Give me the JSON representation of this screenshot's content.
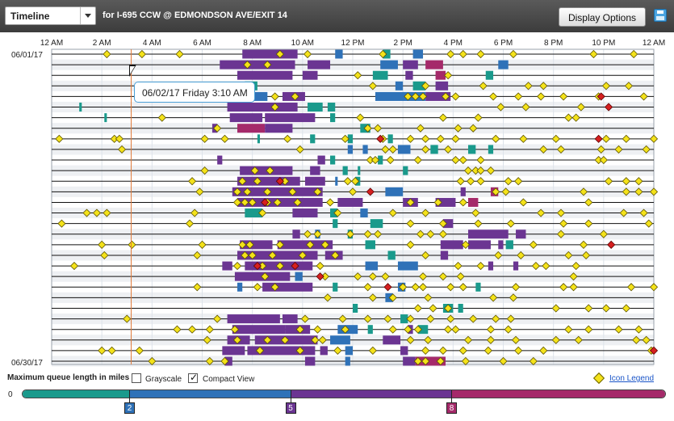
{
  "toolbar": {
    "view_select": "Timeline",
    "location": "for I-695 CCW @ EDMONDSON AVE/EXIT 14",
    "display_options": "Display Options",
    "save_icon": "save-icon"
  },
  "tooltip": "06/02/17 Friday 3:10 AM",
  "cursor_hour": 3.17,
  "chart_data": {
    "type": "timeline",
    "x_ticks": [
      "12 AM",
      "2 AM",
      "4 AM",
      "6 AM",
      "8 AM",
      "10 AM",
      "12 PM",
      "2 PM",
      "4 PM",
      "6 PM",
      "8 PM",
      "10 PM",
      "12 AM"
    ],
    "x_range_hours": [
      0,
      24
    ],
    "first_date": "06/01/17",
    "last_date": "06/30/17",
    "row_count": 30,
    "queue_colors": {
      "teal": "#1a9a8c",
      "blue": "#2f72b8",
      "purple": "#6b3592",
      "magenta": "#a52a6a"
    },
    "incident_color": "#f4e21a",
    "alert_color": "#d62020",
    "rows": [
      {
        "d": [
          2.2,
          3.6,
          5.1,
          9.1,
          10.2,
          13.2,
          15.9,
          16.4,
          17.1,
          18.4,
          21.6,
          23.2
        ],
        "q": [
          [
            7.6,
            9.8,
            "purple"
          ],
          [
            11.3,
            11.6,
            "blue"
          ],
          [
            13.2,
            13.5,
            "teal"
          ],
          [
            14.4,
            14.8,
            "blue"
          ]
        ]
      },
      {
        "d": [
          7.8,
          8.6
        ],
        "q": [
          [
            6.7,
            9.7,
            "purple"
          ],
          [
            10.2,
            11.1,
            "purple"
          ],
          [
            13.1,
            13.8,
            "blue"
          ],
          [
            14.0,
            14.6,
            "purple"
          ],
          [
            14.9,
            15.6,
            "magenta"
          ],
          [
            17.8,
            18.2,
            "blue"
          ]
        ]
      },
      {
        "d": [
          12.2,
          15.8
        ],
        "q": [
          [
            7.4,
            9.6,
            "purple"
          ],
          [
            10.0,
            10.6,
            "purple"
          ],
          [
            12.8,
            13.4,
            "teal"
          ],
          [
            14.1,
            14.4,
            "purple"
          ],
          [
            15.3,
            15.7,
            "magenta"
          ],
          [
            17.3,
            17.6,
            "teal"
          ]
        ]
      },
      {
        "d": [
          12.8,
          14.9,
          17.2,
          19.0,
          19.6,
          22.1,
          23.0
        ],
        "q": [
          [
            7.7,
            8.2,
            "teal"
          ],
          [
            13.7,
            14.0,
            "blue"
          ],
          [
            14.4,
            14.9,
            "teal"
          ],
          [
            15.3,
            15.8,
            "purple"
          ]
        ]
      },
      {
        "d": [
          8.9,
          9.7,
          14.2,
          14.5,
          14.8,
          15.7,
          16.1,
          17.6,
          18.6,
          19.5,
          20.4,
          21.8,
          23.6
        ],
        "q": [
          [
            7.7,
            8.6,
            "blue"
          ],
          [
            9.2,
            10.1,
            "purple"
          ],
          [
            12.9,
            14.9,
            "blue"
          ],
          [
            14.9,
            15.9,
            "purple"
          ]
        ],
        "r": [
          21.9
        ]
      },
      {
        "d": [
          8.9,
          17.9,
          18.9,
          21.1
        ],
        "q": [
          [
            1.1,
            1.2,
            "teal"
          ],
          [
            7.0,
            9.8,
            "purple"
          ],
          [
            10.2,
            10.8,
            "teal"
          ],
          [
            11.0,
            11.3,
            "teal"
          ]
        ],
        "r": [
          22.2
        ]
      },
      {
        "d": [
          4.4,
          12.3,
          15.6,
          17.0,
          20.6,
          20.9
        ],
        "q": [
          [
            2.1,
            2.2,
            "teal"
          ],
          [
            7.1,
            8.4,
            "purple"
          ],
          [
            8.5,
            10.5,
            "purple"
          ],
          [
            11.1,
            11.3,
            "teal"
          ]
        ]
      },
      {
        "d": [
          6.6,
          12.6,
          13.0,
          14.7,
          16.2,
          16.8
        ],
        "q": [
          [
            6.4,
            6.6,
            "purple"
          ],
          [
            7.4,
            8.5,
            "magenta"
          ],
          [
            8.5,
            9.6,
            "purple"
          ],
          [
            12.3,
            12.7,
            "teal"
          ]
        ]
      },
      {
        "d": [
          0.3,
          2.5,
          2.7,
          6.1,
          6.9,
          9.4,
          11.7,
          13.2,
          14.3,
          14.9,
          15.5,
          16.1,
          17.7,
          18.8,
          20.1,
          22.1,
          22.9,
          24.0
        ],
        "q": [
          [
            8.2,
            8.3,
            "teal"
          ],
          [
            10.3,
            10.5,
            "teal"
          ],
          [
            11.8,
            12.0,
            "teal"
          ],
          [
            13.4,
            13.6,
            "teal"
          ]
        ],
        "r": [
          13.1,
          21.8
        ]
      },
      {
        "d": [
          2.8,
          9.9,
          13.3,
          13.6,
          14.9,
          15.8,
          19.6,
          20.3,
          21.9,
          22.6,
          23.7
        ],
        "q": [
          [
            11.8,
            12.0,
            "blue"
          ],
          [
            12.4,
            12.6,
            "blue"
          ],
          [
            13.8,
            14.3,
            "blue"
          ],
          [
            15.1,
            15.4,
            "teal"
          ],
          [
            16.6,
            16.9,
            "teal"
          ],
          [
            17.4,
            17.6,
            "teal"
          ]
        ]
      },
      {
        "d": [
          12.7,
          12.9,
          13.5,
          14.6,
          16.1,
          16.4,
          17.1,
          21.8,
          22.0
        ],
        "q": [
          [
            6.6,
            6.8,
            "purple"
          ],
          [
            10.6,
            10.9,
            "purple"
          ],
          [
            11.1,
            11.3,
            "teal"
          ],
          [
            13.0,
            13.2,
            "teal"
          ]
        ]
      },
      {
        "d": [
          6.1,
          8.1,
          8.7,
          16.6,
          16.9,
          17.1,
          17.5
        ],
        "q": [
          [
            7.5,
            9.6,
            "purple"
          ],
          [
            10.3,
            10.7,
            "purple"
          ],
          [
            11.6,
            11.8,
            "teal"
          ],
          [
            12.2,
            12.3,
            "teal"
          ],
          [
            14.0,
            14.2,
            "teal"
          ]
        ]
      },
      {
        "d": [
          5.6,
          7.6,
          8.2,
          9.3,
          11.8,
          12.1,
          16.3,
          16.7,
          17.1,
          18.2,
          18.6,
          22.2,
          22.9,
          23.4
        ],
        "q": [
          [
            7.4,
            9.9,
            "purple"
          ],
          [
            10.1,
            10.9,
            "purple"
          ],
          [
            11.3,
            11.4,
            "blue"
          ],
          [
            12.1,
            12.3,
            "teal"
          ]
        ],
        "r": [
          9.1
        ]
      },
      {
        "d": [
          5.9,
          7.4,
          7.8,
          8.6,
          9.6,
          10.6,
          12.0,
          17.7,
          18.1,
          21.2,
          22.9,
          23.4,
          24.0
        ],
        "q": [
          [
            7.2,
            10.8,
            "purple"
          ],
          [
            13.3,
            14.0,
            "blue"
          ],
          [
            16.3,
            16.5,
            "purple"
          ],
          [
            17.5,
            17.8,
            "magenta"
          ]
        ],
        "r": [
          12.7
        ]
      },
      {
        "d": [
          7.4,
          7.7,
          8.0,
          8.6,
          9.0,
          9.8,
          11.1,
          14.3,
          15.4,
          16.4,
          18.8,
          21.4
        ],
        "q": [
          [
            7.4,
            10.8,
            "purple"
          ],
          [
            11.4,
            12.4,
            "purple"
          ],
          [
            14.0,
            14.6,
            "purple"
          ],
          [
            15.3,
            16.1,
            "purple"
          ],
          [
            16.6,
            17.0,
            "magenta"
          ]
        ],
        "r": [
          8.5
        ]
      },
      {
        "d": [
          1.4,
          1.8,
          2.2,
          5.7,
          8.4,
          11.4,
          13.6,
          14.9,
          16.9,
          19.5,
          20.3,
          22.8,
          23.6
        ],
        "q": [
          [
            7.7,
            8.4,
            "teal"
          ],
          [
            9.6,
            10.6,
            "purple"
          ],
          [
            11.1,
            11.4,
            "teal"
          ],
          [
            12.3,
            12.6,
            "blue"
          ]
        ]
      },
      {
        "d": [
          0.4,
          5.5,
          14.3,
          15.6,
          17.0,
          18.3,
          20.4,
          21.4,
          23.8
        ],
        "q": [
          [
            11.2,
            11.4,
            "teal"
          ],
          [
            12.7,
            13.2,
            "teal"
          ],
          [
            15.6,
            16.0,
            "purple"
          ]
        ]
      },
      {
        "d": [
          10.2,
          10.6,
          11.9,
          12.6,
          13.0,
          14.7,
          15.1,
          15.6,
          20.3,
          22.0
        ],
        "q": [
          [
            9.6,
            9.9,
            "purple"
          ],
          [
            10.5,
            10.7,
            "blue"
          ],
          [
            11.8,
            12.0,
            "teal"
          ],
          [
            16.6,
            18.2,
            "purple"
          ],
          [
            18.5,
            18.9,
            "purple"
          ]
        ]
      },
      {
        "d": [
          2.0,
          3.2,
          6.0,
          7.6,
          7.9,
          9.1,
          10.3,
          10.9,
          14.3,
          16.5,
          19.2,
          21.2
        ],
        "q": [
          [
            7.5,
            8.8,
            "purple"
          ],
          [
            9.0,
            11.2,
            "purple"
          ],
          [
            12.5,
            12.9,
            "teal"
          ],
          [
            15.5,
            16.4,
            "purple"
          ],
          [
            16.6,
            17.5,
            "purple"
          ],
          [
            17.8,
            18.0,
            "purple"
          ],
          [
            18.1,
            18.4,
            "teal"
          ]
        ],
        "r": [
          22.3
        ]
      },
      {
        "d": [
          2.1,
          5.8,
          7.7,
          8.0,
          8.8,
          10.0,
          11.3,
          14.9,
          17.8,
          18.7,
          20.6,
          21.3
        ],
        "q": [
          [
            7.4,
            10.6,
            "purple"
          ],
          [
            10.9,
            11.6,
            "purple"
          ],
          [
            13.4,
            13.7,
            "teal"
          ],
          [
            15.5,
            15.8,
            "purple"
          ]
        ]
      },
      {
        "d": [
          0.9,
          7.4,
          8.4,
          9.1,
          10.7,
          16.2,
          17.1,
          19.3,
          19.7,
          20.9
        ],
        "q": [
          [
            6.8,
            7.2,
            "purple"
          ],
          [
            7.7,
            10.4,
            "purple"
          ],
          [
            12.5,
            13.0,
            "blue"
          ],
          [
            13.8,
            14.6,
            "blue"
          ],
          [
            17.4,
            17.6,
            "purple"
          ],
          [
            18.4,
            18.6,
            "purple"
          ]
        ],
        "r": [
          8.2,
          9.7
        ]
      },
      {
        "d": [
          8.5,
          10.9,
          12.2,
          12.8,
          13.3,
          14.8,
          15.6,
          16.3,
          20.8
        ],
        "q": [
          [
            7.3,
            9.5,
            "purple"
          ],
          [
            9.7,
            10.0,
            "blue"
          ]
        ],
        "r": [
          10.7
        ]
      },
      {
        "d": [
          5.8,
          8.2,
          8.9,
          12.6,
          14.0,
          14.5,
          14.8,
          15.9,
          16.4,
          18.5,
          20.4,
          20.8,
          23.1,
          24.0
        ],
        "q": [
          [
            7.4,
            7.6,
            "blue"
          ],
          [
            8.4,
            10.4,
            "purple"
          ],
          [
            11.2,
            11.4,
            "teal"
          ],
          [
            13.8,
            14.1,
            "blue"
          ],
          [
            16.9,
            17.1,
            "teal"
          ]
        ],
        "r": [
          13.4
        ]
      },
      {
        "d": [
          11.0,
          12.8,
          13.6,
          15.0,
          17.6,
          18.4
        ],
        "q": [
          [
            13.3,
            13.6,
            "blue"
          ]
        ]
      },
      {
        "d": [
          14.6,
          15.2,
          15.8,
          20.1,
          21.4,
          22.1,
          22.9
        ],
        "q": [
          [
            12.0,
            12.2,
            "teal"
          ],
          [
            15.6,
            16.0,
            "teal"
          ],
          [
            16.2,
            16.4,
            "teal"
          ]
        ]
      },
      {
        "d": [
          3.0,
          6.6,
          10.1,
          11.6,
          12.6,
          13.4,
          14.3,
          15.1,
          15.9,
          16.8,
          17.7,
          18.3
        ],
        "q": [
          [
            7.0,
            9.1,
            "purple"
          ],
          [
            9.2,
            9.8,
            "purple"
          ],
          [
            13.9,
            14.2,
            "teal"
          ]
        ]
      },
      {
        "d": [
          5.0,
          5.6,
          6.3,
          7.3,
          9.9,
          10.6,
          11.7,
          13.6,
          14.2,
          14.6,
          15.8,
          16.1,
          17.5,
          18.2,
          20.6,
          21.4,
          22.6,
          23.4
        ],
        "q": [
          [
            7.2,
            9.3,
            "purple"
          ],
          [
            9.3,
            10.3,
            "purple"
          ],
          [
            11.4,
            12.2,
            "blue"
          ],
          [
            12.6,
            12.8,
            "teal"
          ],
          [
            14.2,
            14.4,
            "purple"
          ],
          [
            14.6,
            15.0,
            "teal"
          ]
        ]
      },
      {
        "d": [
          6.2,
          7.4,
          8.6,
          9.3,
          10.5,
          10.8,
          14.3,
          15.0,
          16.6,
          17.5,
          18.5,
          20.1,
          21.0,
          23.3,
          23.7
        ],
        "q": [
          [
            7.0,
            7.9,
            "purple"
          ],
          [
            8.1,
            9.7,
            "purple"
          ],
          [
            9.7,
            10.6,
            "purple"
          ],
          [
            11.1,
            11.9,
            "blue"
          ],
          [
            13.2,
            13.9,
            "purple"
          ]
        ]
      },
      {
        "d": [
          2.0,
          2.4,
          3.5,
          8.3,
          9.9,
          11.4,
          12.8,
          14.9,
          15.6,
          16.4,
          17.4,
          18.6,
          19.6,
          23.9
        ],
        "q": [
          [
            6.8,
            7.7,
            "purple"
          ],
          [
            7.8,
            10.5,
            "purple"
          ],
          [
            10.7,
            11.0,
            "purple"
          ],
          [
            11.7,
            12.0,
            "blue"
          ],
          [
            13.9,
            14.2,
            "purple"
          ]
        ],
        "r": [
          24.0
        ]
      },
      {
        "d": [
          4.0,
          6.3,
          6.9,
          14.6,
          14.9,
          15.5,
          16.5,
          18.0,
          19.2
        ],
        "q": [
          [
            6.9,
            7.2,
            "purple"
          ],
          [
            10.1,
            10.5,
            "purple"
          ],
          [
            11.7,
            11.9,
            "blue"
          ],
          [
            14.0,
            14.5,
            "purple"
          ],
          [
            14.5,
            15.7,
            "magenta"
          ]
        ]
      }
    ]
  },
  "legend": {
    "title": "Maximum queue length in miles",
    "grayscale": "Grayscale",
    "compact_view": "Compact View",
    "icon_legend": "Icon Legend",
    "scale_zero": "0",
    "ticks": [
      {
        "label": "2",
        "miles": 2,
        "color": "#2f72b8"
      },
      {
        "label": "5",
        "miles": 5,
        "color": "#6b3592"
      },
      {
        "label": "8",
        "miles": 8,
        "color": "#a52a6a"
      }
    ],
    "max_miles": 12,
    "segments": [
      {
        "from": 0,
        "to": 2,
        "color": "#1a9a8c"
      },
      {
        "from": 2,
        "to": 5,
        "color": "#2f72b8"
      },
      {
        "from": 5,
        "to": 8,
        "color": "#6b3592"
      },
      {
        "from": 8,
        "to": 12,
        "color": "#a52a6a"
      }
    ]
  }
}
